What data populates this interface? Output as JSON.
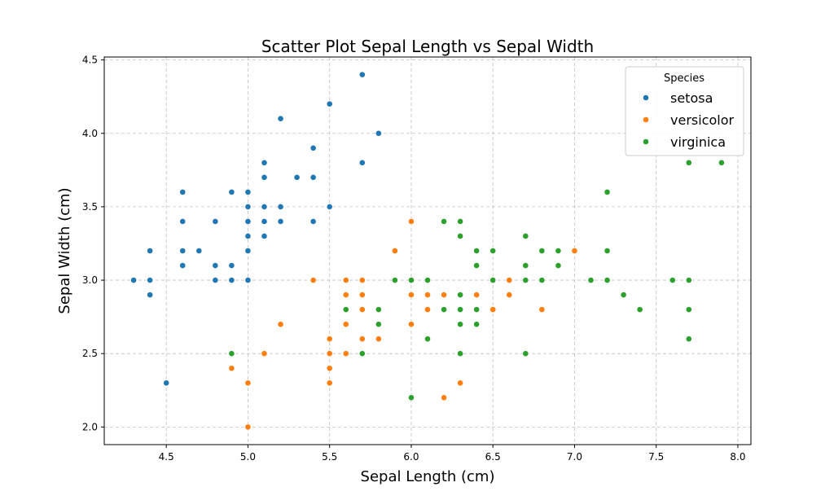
{
  "chart_data": {
    "type": "scatter",
    "title": "Scatter Plot Sepal Length vs Sepal Width",
    "xlabel": "Sepal Length (cm)",
    "ylabel": "Sepal Width (cm)",
    "xlim": [
      4.12,
      8.08
    ],
    "ylim": [
      1.88,
      4.52
    ],
    "xticks": [
      4.5,
      5.0,
      5.5,
      6.0,
      6.5,
      7.0,
      7.5,
      8.0
    ],
    "xtick_labels": [
      "4.5",
      "5.0",
      "5.5",
      "6.0",
      "6.5",
      "7.0",
      "7.5",
      "8.0"
    ],
    "yticks": [
      2.0,
      2.5,
      3.0,
      3.5,
      4.0,
      4.5
    ],
    "ytick_labels": [
      "2.0",
      "2.5",
      "3.0",
      "3.5",
      "4.0",
      "4.5"
    ],
    "grid": true,
    "legend": {
      "title": "Species",
      "placement": "top-right"
    },
    "series": [
      {
        "name": "setosa",
        "color": "#1f77b4",
        "points": [
          [
            4.3,
            3.0
          ],
          [
            4.4,
            3.0
          ],
          [
            4.4,
            2.9
          ],
          [
            4.4,
            3.2
          ],
          [
            4.5,
            2.3
          ],
          [
            4.6,
            3.1
          ],
          [
            4.6,
            3.2
          ],
          [
            4.6,
            3.4
          ],
          [
            4.6,
            3.6
          ],
          [
            4.7,
            3.2
          ],
          [
            4.8,
            3.0
          ],
          [
            4.8,
            3.1
          ],
          [
            4.8,
            3.4
          ],
          [
            4.9,
            3.0
          ],
          [
            4.9,
            3.1
          ],
          [
            4.9,
            3.6
          ],
          [
            5.0,
            3.0
          ],
          [
            5.0,
            3.2
          ],
          [
            5.0,
            3.3
          ],
          [
            5.0,
            3.4
          ],
          [
            5.0,
            3.5
          ],
          [
            5.0,
            3.6
          ],
          [
            5.1,
            3.3
          ],
          [
            5.1,
            3.4
          ],
          [
            5.1,
            3.5
          ],
          [
            5.1,
            3.7
          ],
          [
            5.1,
            3.8
          ],
          [
            5.2,
            3.4
          ],
          [
            5.2,
            3.5
          ],
          [
            5.2,
            4.1
          ],
          [
            5.3,
            3.7
          ],
          [
            5.4,
            3.4
          ],
          [
            5.4,
            3.7
          ],
          [
            5.4,
            3.9
          ],
          [
            5.5,
            3.5
          ],
          [
            5.5,
            4.2
          ],
          [
            5.7,
            3.8
          ],
          [
            5.7,
            4.4
          ],
          [
            5.8,
            4.0
          ]
        ]
      },
      {
        "name": "versicolor",
        "color": "#ff7f0e",
        "points": [
          [
            4.9,
            2.4
          ],
          [
            5.0,
            2.0
          ],
          [
            5.0,
            2.3
          ],
          [
            5.1,
            2.5
          ],
          [
            5.2,
            2.7
          ],
          [
            5.4,
            3.0
          ],
          [
            5.5,
            2.3
          ],
          [
            5.5,
            2.4
          ],
          [
            5.5,
            2.5
          ],
          [
            5.5,
            2.6
          ],
          [
            5.6,
            2.5
          ],
          [
            5.6,
            2.7
          ],
          [
            5.6,
            2.9
          ],
          [
            5.6,
            3.0
          ],
          [
            5.7,
            2.6
          ],
          [
            5.7,
            2.8
          ],
          [
            5.7,
            2.9
          ],
          [
            5.7,
            3.0
          ],
          [
            5.8,
            2.6
          ],
          [
            5.8,
            2.7
          ],
          [
            5.9,
            3.0
          ],
          [
            5.9,
            3.2
          ],
          [
            6.0,
            2.7
          ],
          [
            6.0,
            2.9
          ],
          [
            6.0,
            3.4
          ],
          [
            6.1,
            2.8
          ],
          [
            6.1,
            2.9
          ],
          [
            6.1,
            3.0
          ],
          [
            6.2,
            2.2
          ],
          [
            6.2,
            2.9
          ],
          [
            6.3,
            2.3
          ],
          [
            6.3,
            2.5
          ],
          [
            6.3,
            3.3
          ],
          [
            6.4,
            2.9
          ],
          [
            6.4,
            3.2
          ],
          [
            6.5,
            2.8
          ],
          [
            6.6,
            2.9
          ],
          [
            6.6,
            3.0
          ],
          [
            6.7,
            3.0
          ],
          [
            6.7,
            3.1
          ],
          [
            6.8,
            2.8
          ],
          [
            6.9,
            3.1
          ],
          [
            7.0,
            3.2
          ]
        ]
      },
      {
        "name": "virginica",
        "color": "#2ca02c",
        "points": [
          [
            4.9,
            2.5
          ],
          [
            5.6,
            2.8
          ],
          [
            5.7,
            2.5
          ],
          [
            5.8,
            2.7
          ],
          [
            5.8,
            2.8
          ],
          [
            5.9,
            3.0
          ],
          [
            6.0,
            2.2
          ],
          [
            6.0,
            3.0
          ],
          [
            6.1,
            2.6
          ],
          [
            6.1,
            3.0
          ],
          [
            6.2,
            2.8
          ],
          [
            6.2,
            3.4
          ],
          [
            6.3,
            2.5
          ],
          [
            6.3,
            2.7
          ],
          [
            6.3,
            2.8
          ],
          [
            6.3,
            2.9
          ],
          [
            6.3,
            3.3
          ],
          [
            6.3,
            3.4
          ],
          [
            6.4,
            2.7
          ],
          [
            6.4,
            2.8
          ],
          [
            6.4,
            3.1
          ],
          [
            6.4,
            3.2
          ],
          [
            6.5,
            3.0
          ],
          [
            6.5,
            3.2
          ],
          [
            6.7,
            2.5
          ],
          [
            6.7,
            3.0
          ],
          [
            6.7,
            3.1
          ],
          [
            6.7,
            3.3
          ],
          [
            6.8,
            3.0
          ],
          [
            6.8,
            3.2
          ],
          [
            6.9,
            3.1
          ],
          [
            6.9,
            3.2
          ],
          [
            7.1,
            3.0
          ],
          [
            7.2,
            3.0
          ],
          [
            7.2,
            3.2
          ],
          [
            7.2,
            3.6
          ],
          [
            7.3,
            2.9
          ],
          [
            7.4,
            2.8
          ],
          [
            7.6,
            3.0
          ],
          [
            7.7,
            2.6
          ],
          [
            7.7,
            2.8
          ],
          [
            7.7,
            3.0
          ],
          [
            7.7,
            3.8
          ],
          [
            7.9,
            3.8
          ]
        ]
      }
    ]
  }
}
